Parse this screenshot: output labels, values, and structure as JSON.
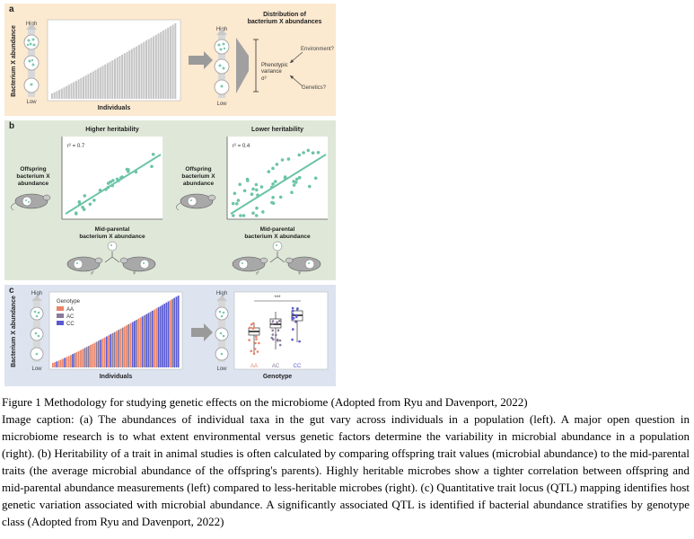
{
  "panel_a": {
    "label": "a",
    "y_high": "High",
    "y_low": "Low",
    "y_axis": "Bacterium X abundance",
    "x_axis": "Individuals",
    "dist_title_1": "Distribution of",
    "dist_title_2": "bacterium X abundances",
    "phenotypic_1": "Phenotypic",
    "phenotypic_2": "variance",
    "sigma": "σ²",
    "environment": "Environment?",
    "genetics": "Genetics?"
  },
  "panel_b": {
    "label": "b",
    "left_title": "Higher heritability",
    "right_title": "Lower heritability",
    "left_r2": "r² = 0.7",
    "right_r2": "r² = 0.4",
    "offspring_1": "Offspring",
    "offspring_2": "bacterium X",
    "offspring_3": "abundance",
    "mid_1": "Mid-parental",
    "mid_2": "bacterium X abundance",
    "male": "♂",
    "female": "♀"
  },
  "panel_c": {
    "label": "c",
    "y_high": "High",
    "y_low": "Low",
    "y_axis": "Bacterium X abundance",
    "x_axis": "Individuals",
    "genotype_title": "Genotype",
    "genotypes": [
      {
        "name": "AA",
        "color": "#e8846a"
      },
      {
        "name": "AC",
        "color": "#8a7a9a"
      },
      {
        "name": "CC",
        "color": "#5a5ad0"
      }
    ],
    "box_x_label": "Genotype",
    "significance": "***"
  },
  "caption": {
    "figure_line": "Figure 1 Methodology for studying genetic effects on the microbiome (Adopted from Ryu and Davenport, 2022)",
    "body": "Image caption: (a) The abundances of individual taxa in the gut vary across individuals in a population (left). A major open question in microbiome research is to what extent environmental versus genetic factors determine the variability in microbial abundance in a population (right). (b) Heritability of a trait in animal studies is often calculated by comparing offspring trait values (microbial abundance) to the mid-parental traits (the average microbial abundance of the offspring's parents). Highly heritable microbes show a tighter correlation between offspring and mid-parental abundance measurements (left) compared to less-heritable microbes (right). (c) Quantitative trait locus (QTL) mapping identifies host genetic variation associated with microbial abundance. A significantly associated QTL is identified if bacterial abundance stratifies by genotype class (Adopted from Ryu and Davenport, 2022)"
  }
}
